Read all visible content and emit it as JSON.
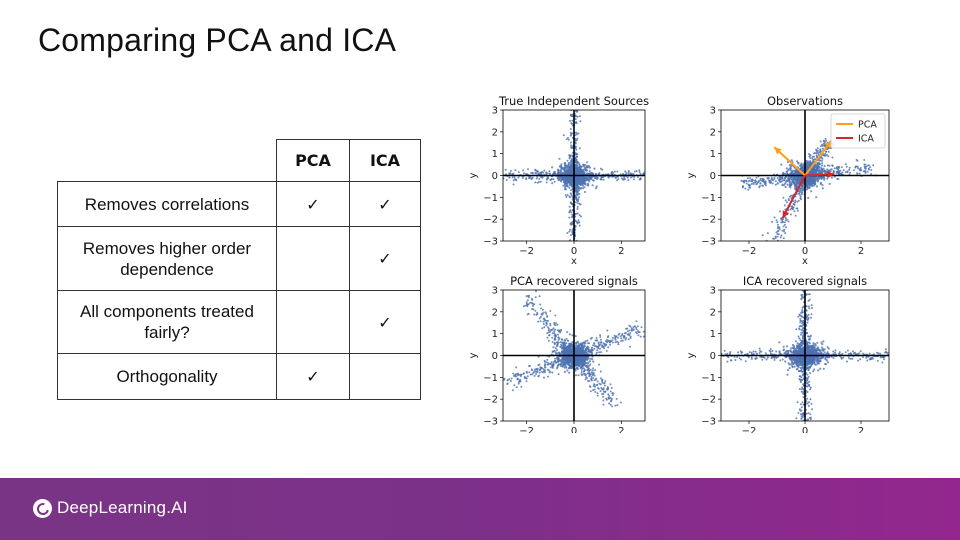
{
  "slide": {
    "title": "Comparing PCA and ICA"
  },
  "table": {
    "headers": [
      "PCA",
      "ICA"
    ],
    "rows": [
      {
        "label": "Removes correlations",
        "pca": "✓",
        "ica": "✓"
      },
      {
        "label": "Removes higher order dependence",
        "pca": "",
        "ica": "✓"
      },
      {
        "label": "All components treated fairly?",
        "pca": "",
        "ica": "✓"
      },
      {
        "label": "Orthogonality",
        "pca": "✓",
        "ica": ""
      }
    ]
  },
  "footer": {
    "brand": "DeepLearning.AI"
  },
  "colors": {
    "points": "#4c72b0",
    "pca_arrow": "#ff9f1c",
    "ica_arrow": "#d62728",
    "footer": "#7b3188"
  },
  "chart_data": [
    {
      "type": "scatter",
      "title": "True Independent Sources",
      "xlabel": "x",
      "ylabel": "y",
      "xlim": [
        -3,
        3
      ],
      "ylim": [
        -3,
        3
      ],
      "xticks": [
        -2,
        0,
        2
      ],
      "yticks": [
        3,
        2,
        1,
        0,
        -1,
        -2,
        -3
      ],
      "pattern": "axis-aligned heavy-tailed cross",
      "arms": [
        {
          "dir": [
            1,
            0
          ],
          "length": 3.0,
          "width": 0.12
        },
        {
          "dir": [
            -1,
            0
          ],
          "length": 3.0,
          "width": 0.12
        },
        {
          "dir": [
            0,
            1
          ],
          "length": 3.0,
          "width": 0.12
        },
        {
          "dir": [
            0,
            -1
          ],
          "length": 3.0,
          "width": 0.12
        }
      ]
    },
    {
      "type": "scatter",
      "title": "Observations",
      "xlabel": "x",
      "ylabel": "y",
      "xlim": [
        -3,
        3
      ],
      "ylim": [
        -3,
        3
      ],
      "xticks": [
        -2,
        0,
        2
      ],
      "yticks": [
        3,
        2,
        1,
        0,
        -1,
        -2,
        -3
      ],
      "legend": {
        "position": "top-right",
        "entries": [
          "PCA",
          "ICA"
        ]
      },
      "pattern": "skewed mixture",
      "arms": [
        {
          "dir": [
            0.7,
            0.12
          ],
          "length": 2.2,
          "width": 0.15
        },
        {
          "dir": [
            -0.7,
            -0.12
          ],
          "length": 2.0,
          "width": 0.15
        },
        {
          "dir": [
            -0.35,
            -0.94
          ],
          "length": 3.2,
          "width": 0.15
        },
        {
          "dir": [
            0.5,
            0.87
          ],
          "length": 1.6,
          "width": 0.15
        }
      ],
      "arrows": [
        {
          "series": "PCA",
          "from": [
            0,
            0
          ],
          "to": [
            -1.1,
            1.3
          ]
        },
        {
          "series": "PCA",
          "from": [
            0,
            0
          ],
          "to": [
            0.95,
            1.6
          ]
        },
        {
          "series": "ICA",
          "from": [
            0,
            0
          ],
          "to": [
            1.05,
            0.05
          ]
        },
        {
          "series": "ICA",
          "from": [
            0,
            0
          ],
          "to": [
            -0.8,
            -1.95
          ]
        }
      ]
    },
    {
      "type": "scatter",
      "title": "PCA recovered signals",
      "xlabel": "x",
      "ylabel": "y",
      "xlim": [
        -3,
        3
      ],
      "ylim": [
        -3,
        3
      ],
      "xticks": [
        -2,
        0,
        2
      ],
      "yticks": [
        3,
        2,
        1,
        0,
        -1,
        -2,
        -3
      ],
      "pattern": "rotated cross",
      "arms": [
        {
          "dir": [
            -0.6,
            0.8
          ],
          "length": 3.0,
          "width": 0.18
        },
        {
          "dir": [
            0.6,
            -0.8
          ],
          "length": 2.6,
          "width": 0.18
        },
        {
          "dir": [
            0.91,
            0.41
          ],
          "length": 2.8,
          "width": 0.18
        },
        {
          "dir": [
            -0.91,
            -0.41
          ],
          "length": 2.8,
          "width": 0.18
        }
      ]
    },
    {
      "type": "scatter",
      "title": "ICA recovered signals",
      "xlabel": "x",
      "ylabel": "y",
      "xlim": [
        -3,
        3
      ],
      "ylim": [
        -3,
        3
      ],
      "xticks": [
        -2,
        0,
        2
      ],
      "yticks": [
        3,
        2,
        1,
        0,
        -1,
        -2,
        -3
      ],
      "pattern": "axis-aligned heavy-tailed cross",
      "arms": [
        {
          "dir": [
            1,
            0
          ],
          "length": 3.0,
          "width": 0.12
        },
        {
          "dir": [
            -1,
            0
          ],
          "length": 3.0,
          "width": 0.12
        },
        {
          "dir": [
            0,
            1
          ],
          "length": 3.0,
          "width": 0.12
        },
        {
          "dir": [
            0,
            -1
          ],
          "length": 3.0,
          "width": 0.12
        }
      ]
    }
  ]
}
